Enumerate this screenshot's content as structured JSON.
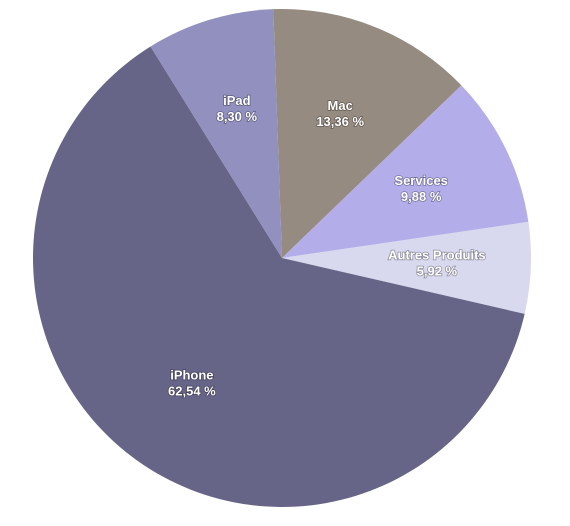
{
  "chart_data": {
    "type": "pie",
    "categories": [
      "Mac",
      "Services",
      "Autres Produits",
      "iPhone",
      "iPad"
    ],
    "values": [
      13.36,
      9.88,
      5.92,
      62.54,
      8.3
    ],
    "value_labels": [
      "13,36 %",
      "9,88 %",
      "5,92 %",
      "62,54 %",
      "8,30 %"
    ],
    "colors": [
      "#958b80",
      "#b3aeea",
      "#d8d8ee",
      "#676587",
      "#9190bf"
    ]
  }
}
